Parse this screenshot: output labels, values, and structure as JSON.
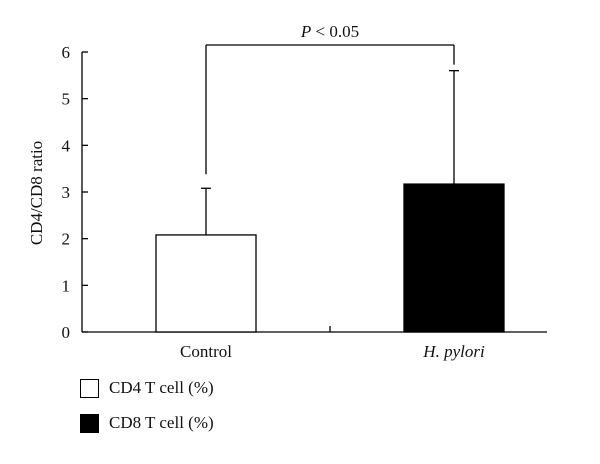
{
  "chart_data": {
    "type": "bar",
    "categories": [
      "Control",
      "H. pylori"
    ],
    "category_italic": [
      false,
      true
    ],
    "values": [
      2.08,
      3.17
    ],
    "error_upper": [
      3.08,
      5.6
    ],
    "bar_colors": [
      "#ffffff",
      "#000000"
    ],
    "ylabel": "CD4/CD8 ratio",
    "xlabel": "",
    "ylim": [
      0,
      6
    ],
    "yticks": [
      "0",
      "1",
      "2",
      "3",
      "4",
      "5",
      "6"
    ],
    "annotation": {
      "p_symbol": "P",
      "text": " < 0.05"
    },
    "grid": false
  },
  "legend": {
    "items": [
      {
        "label": "CD4 T cell (%)",
        "color": "#ffffff"
      },
      {
        "label": "CD8 T cell (%)",
        "color": "#000000"
      }
    ]
  }
}
